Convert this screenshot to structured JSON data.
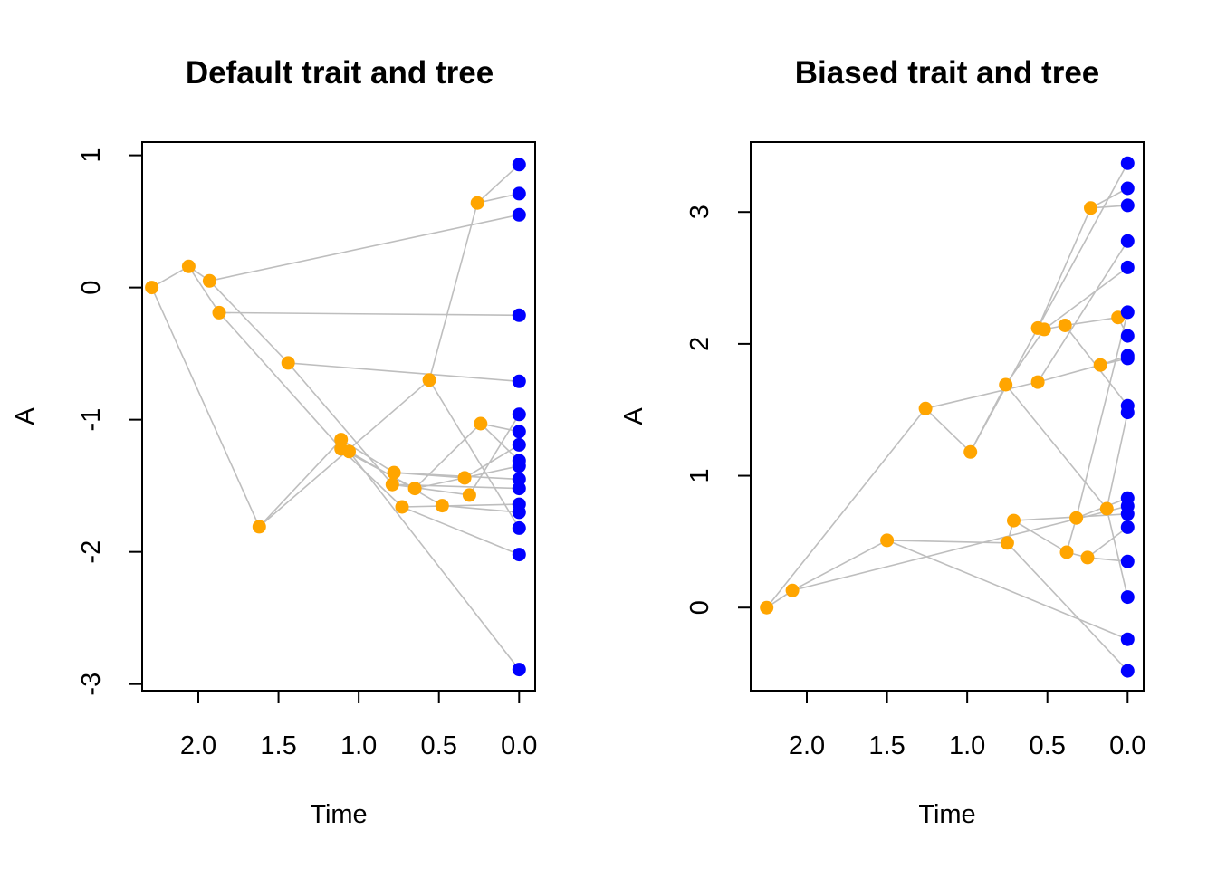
{
  "chart_data": [
    {
      "type": "scatter",
      "title": "Default trait and tree",
      "xlabel": "Time",
      "ylabel": "A",
      "x_reversed": true,
      "xlim": [
        2.35,
        -0.1
      ],
      "ylim": [
        -3.05,
        1.1
      ],
      "xticks": [
        2.0,
        1.5,
        1.0,
        0.5,
        0.0
      ],
      "xtick_labels": [
        "2.0",
        "1.5",
        "1.0",
        "0.5",
        "0.0"
      ],
      "yticks": [
        1,
        0,
        -1,
        -2,
        -3
      ],
      "ytick_labels": [
        "1",
        "0",
        "-1",
        "-2",
        "-3"
      ],
      "colors": {
        "internal": "#FFA500",
        "tip": "#0000FF",
        "edge": "#BEBEBE"
      },
      "internal_nodes": [
        [
          2.29,
          0.0
        ],
        [
          2.06,
          0.16
        ],
        [
          1.93,
          0.05
        ],
        [
          1.87,
          -0.19
        ],
        [
          1.62,
          -1.81
        ],
        [
          1.44,
          -0.57
        ],
        [
          1.11,
          -1.15
        ],
        [
          1.11,
          -1.22
        ],
        [
          1.06,
          -1.24
        ],
        [
          0.78,
          -1.4
        ],
        [
          0.79,
          -1.49
        ],
        [
          0.73,
          -1.66
        ],
        [
          0.65,
          -1.52
        ],
        [
          0.56,
          -0.7
        ],
        [
          0.48,
          -1.65
        ],
        [
          0.34,
          -1.44
        ],
        [
          0.31,
          -1.57
        ],
        [
          0.26,
          0.64
        ],
        [
          0.24,
          -1.03
        ]
      ],
      "tips": [
        [
          0,
          0.93
        ],
        [
          0,
          0.71
        ],
        [
          0,
          0.55
        ],
        [
          0,
          -0.21
        ],
        [
          0,
          -0.71
        ],
        [
          0,
          -0.96
        ],
        [
          0,
          -1.09
        ],
        [
          0,
          -1.19
        ],
        [
          0,
          -1.31
        ],
        [
          0,
          -1.35
        ],
        [
          0,
          -1.45
        ],
        [
          0,
          -1.52
        ],
        [
          0,
          -1.64
        ],
        [
          0,
          -1.7
        ],
        [
          0,
          -1.82
        ],
        [
          0,
          -2.02
        ],
        [
          0,
          -2.89
        ]
      ],
      "edges": [
        [
          [
            2.29,
            0.0
          ],
          [
            2.06,
            0.16
          ]
        ],
        [
          [
            2.29,
            0.0
          ],
          [
            1.62,
            -1.81
          ]
        ],
        [
          [
            2.06,
            0.16
          ],
          [
            1.93,
            0.05
          ]
        ],
        [
          [
            2.06,
            0.16
          ],
          [
            1.87,
            -0.19
          ]
        ],
        [
          [
            1.93,
            0.05
          ],
          [
            0,
            0.55
          ]
        ],
        [
          [
            1.93,
            0.05
          ],
          [
            1.44,
            -0.57
          ]
        ],
        [
          [
            1.87,
            -0.19
          ],
          [
            0,
            -0.21
          ]
        ],
        [
          [
            1.87,
            -0.19
          ],
          [
            1.11,
            -1.22
          ]
        ],
        [
          [
            1.62,
            -1.81
          ],
          [
            1.11,
            -1.15
          ]
        ],
        [
          [
            1.62,
            -1.81
          ],
          [
            0.56,
            -0.7
          ]
        ],
        [
          [
            1.44,
            -0.57
          ],
          [
            0,
            -0.71
          ]
        ],
        [
          [
            1.44,
            -0.57
          ],
          [
            0.79,
            -1.49
          ]
        ],
        [
          [
            1.11,
            -1.15
          ],
          [
            1.06,
            -1.24
          ]
        ],
        [
          [
            1.11,
            -1.15
          ],
          [
            0.78,
            -1.4
          ]
        ],
        [
          [
            1.11,
            -1.22
          ],
          [
            0.73,
            -1.66
          ]
        ],
        [
          [
            1.11,
            -1.22
          ],
          [
            0.65,
            -1.52
          ]
        ],
        [
          [
            1.06,
            -1.24
          ],
          [
            0,
            -2.89
          ]
        ],
        [
          [
            1.06,
            -1.24
          ],
          [
            0.48,
            -1.65
          ]
        ],
        [
          [
            0.78,
            -1.4
          ],
          [
            0.34,
            -1.44
          ]
        ],
        [
          [
            0.78,
            -1.4
          ],
          [
            0,
            -1.45
          ]
        ],
        [
          [
            0.79,
            -1.49
          ],
          [
            0.31,
            -1.57
          ]
        ],
        [
          [
            0.79,
            -1.49
          ],
          [
            0,
            -1.52
          ]
        ],
        [
          [
            0.73,
            -1.66
          ],
          [
            0,
            -1.64
          ]
        ],
        [
          [
            0.73,
            -1.66
          ],
          [
            0,
            -2.02
          ]
        ],
        [
          [
            0.65,
            -1.52
          ],
          [
            0.24,
            -1.03
          ]
        ],
        [
          [
            0.65,
            -1.52
          ],
          [
            0,
            -1.35
          ]
        ],
        [
          [
            0.56,
            -0.7
          ],
          [
            0.26,
            0.64
          ]
        ],
        [
          [
            0.56,
            -0.7
          ],
          [
            0,
            -1.82
          ]
        ],
        [
          [
            0.48,
            -1.65
          ],
          [
            0,
            -1.7
          ]
        ],
        [
          [
            0.34,
            -1.44
          ],
          [
            0,
            -1.19
          ]
        ],
        [
          [
            0.31,
            -1.57
          ],
          [
            0,
            -0.96
          ]
        ],
        [
          [
            0.26,
            0.64
          ],
          [
            0,
            0.93
          ]
        ],
        [
          [
            0.26,
            0.64
          ],
          [
            0,
            0.71
          ]
        ],
        [
          [
            0.24,
            -1.03
          ],
          [
            0,
            -1.09
          ]
        ],
        [
          [
            0.24,
            -1.03
          ],
          [
            0,
            -1.31
          ]
        ]
      ]
    },
    {
      "type": "scatter",
      "title": "Biased trait and tree",
      "xlabel": "Time",
      "ylabel": "A",
      "x_reversed": true,
      "xlim": [
        2.35,
        -0.1
      ],
      "ylim": [
        -0.63,
        3.53
      ],
      "xticks": [
        2.0,
        1.5,
        1.0,
        0.5,
        0.0
      ],
      "xtick_labels": [
        "2.0",
        "1.5",
        "1.0",
        "0.5",
        "0.0"
      ],
      "yticks": [
        0,
        1,
        2,
        3
      ],
      "ytick_labels": [
        "0",
        "1",
        "2",
        "3"
      ],
      "colors": {
        "internal": "#FFA500",
        "tip": "#0000FF",
        "edge": "#BEBEBE"
      },
      "internal_nodes": [
        [
          2.25,
          0.0
        ],
        [
          2.09,
          0.13
        ],
        [
          1.5,
          0.51
        ],
        [
          1.26,
          1.51
        ],
        [
          0.98,
          1.18
        ],
        [
          0.76,
          1.69
        ],
        [
          0.75,
          0.49
        ],
        [
          0.71,
          0.66
        ],
        [
          0.56,
          1.71
        ],
        [
          0.56,
          2.12
        ],
        [
          0.52,
          2.11
        ],
        [
          0.39,
          2.14
        ],
        [
          0.38,
          0.42
        ],
        [
          0.32,
          0.68
        ],
        [
          0.25,
          0.38
        ],
        [
          0.23,
          3.03
        ],
        [
          0.17,
          1.84
        ],
        [
          0.13,
          0.75
        ],
        [
          0.06,
          2.2
        ]
      ],
      "tips": [
        [
          0,
          3.37
        ],
        [
          0,
          3.18
        ],
        [
          0,
          3.05
        ],
        [
          0,
          2.78
        ],
        [
          0,
          2.58
        ],
        [
          0,
          2.24
        ],
        [
          0,
          2.06
        ],
        [
          0,
          1.91
        ],
        [
          0,
          1.89
        ],
        [
          0,
          1.53
        ],
        [
          0,
          1.48
        ],
        [
          0,
          0.83
        ],
        [
          0,
          0.77
        ],
        [
          0,
          0.71
        ],
        [
          0,
          0.61
        ],
        [
          0,
          0.35
        ],
        [
          0,
          0.08
        ],
        [
          0,
          -0.24
        ],
        [
          0,
          -0.48
        ]
      ],
      "edges": [
        [
          [
            2.25,
            0.0
          ],
          [
            1.26,
            1.51
          ]
        ],
        [
          [
            2.25,
            0.0
          ],
          [
            2.09,
            0.13
          ]
        ],
        [
          [
            2.09,
            0.13
          ],
          [
            1.5,
            0.51
          ]
        ],
        [
          [
            2.09,
            0.13
          ],
          [
            0,
            0.77
          ]
        ],
        [
          [
            1.5,
            0.51
          ],
          [
            0.75,
            0.49
          ]
        ],
        [
          [
            1.5,
            0.51
          ],
          [
            0,
            -0.24
          ]
        ],
        [
          [
            1.26,
            1.51
          ],
          [
            0.98,
            1.18
          ]
        ],
        [
          [
            1.26,
            1.51
          ],
          [
            0.56,
            1.71
          ]
        ],
        [
          [
            0.98,
            1.18
          ],
          [
            0.56,
            2.12
          ]
        ],
        [
          [
            0.98,
            1.18
          ],
          [
            0.76,
            1.69
          ]
        ],
        [
          [
            0.76,
            1.69
          ],
          [
            0.52,
            2.11
          ]
        ],
        [
          [
            0.76,
            1.69
          ],
          [
            0.13,
            0.75
          ]
        ],
        [
          [
            0.75,
            0.49
          ],
          [
            0,
            -0.48
          ]
        ],
        [
          [
            0.75,
            0.49
          ],
          [
            0.71,
            0.66
          ]
        ],
        [
          [
            0.71,
            0.66
          ],
          [
            0.38,
            0.42
          ]
        ],
        [
          [
            0.71,
            0.66
          ],
          [
            0,
            0.71
          ]
        ],
        [
          [
            0.56,
            1.71
          ],
          [
            0.17,
            1.84
          ]
        ],
        [
          [
            0.56,
            1.71
          ],
          [
            0,
            2.78
          ]
        ],
        [
          [
            0.56,
            2.12
          ],
          [
            0.23,
            3.03
          ]
        ],
        [
          [
            0.56,
            2.12
          ],
          [
            0,
            3.37
          ]
        ],
        [
          [
            0.52,
            2.11
          ],
          [
            0.39,
            2.14
          ]
        ],
        [
          [
            0.52,
            2.11
          ],
          [
            0,
            2.58
          ]
        ],
        [
          [
            0.39,
            2.14
          ],
          [
            0,
            1.53
          ]
        ],
        [
          [
            0.39,
            2.14
          ],
          [
            0.06,
            2.2
          ]
        ],
        [
          [
            0.38,
            0.42
          ],
          [
            0.32,
            0.68
          ]
        ],
        [
          [
            0.38,
            0.42
          ],
          [
            0.25,
            0.38
          ]
        ],
        [
          [
            0.32,
            0.68
          ],
          [
            0,
            2.24
          ]
        ],
        [
          [
            0.32,
            0.68
          ],
          [
            0,
            0.83
          ]
        ],
        [
          [
            0.25,
            0.38
          ],
          [
            0,
            0.61
          ]
        ],
        [
          [
            0.25,
            0.38
          ],
          [
            0,
            0.35
          ]
        ],
        [
          [
            0.23,
            3.03
          ],
          [
            0,
            3.18
          ]
        ],
        [
          [
            0.23,
            3.03
          ],
          [
            0,
            3.05
          ]
        ],
        [
          [
            0.17,
            1.84
          ],
          [
            0,
            1.91
          ]
        ],
        [
          [
            0.17,
            1.84
          ],
          [
            0,
            1.89
          ]
        ],
        [
          [
            0.13,
            0.75
          ],
          [
            0,
            0.08
          ]
        ],
        [
          [
            0.13,
            0.75
          ],
          [
            0,
            1.48
          ]
        ],
        [
          [
            0.06,
            2.2
          ],
          [
            0,
            2.06
          ]
        ]
      ]
    }
  ]
}
